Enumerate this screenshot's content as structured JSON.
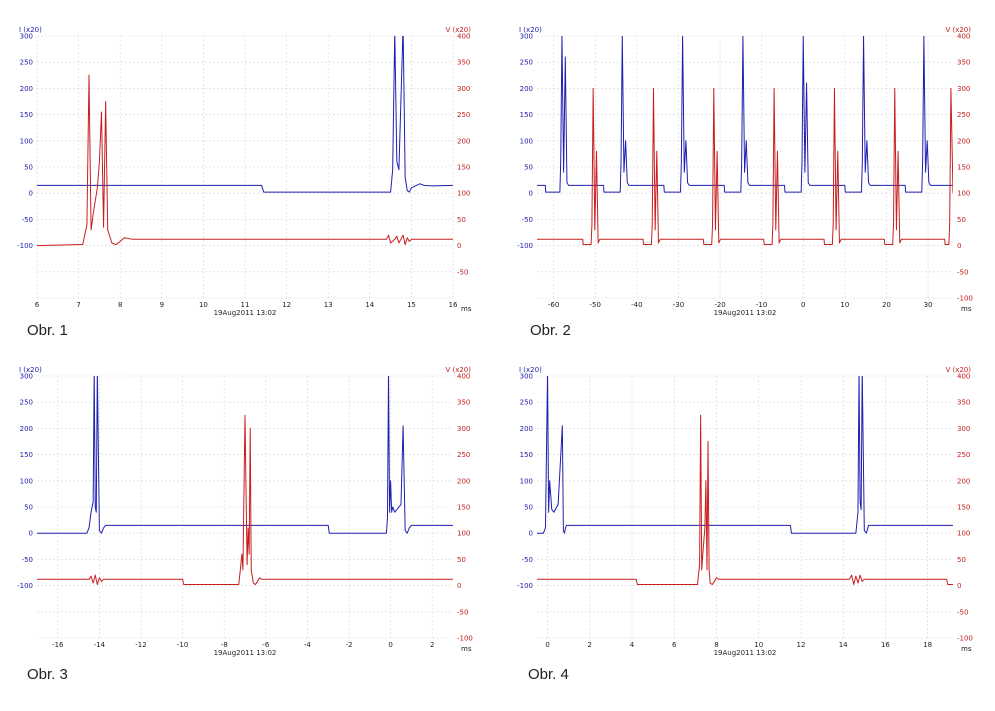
{
  "colors": {
    "current": "#1f1fb0",
    "voltage": "#c81e1e",
    "grid": "#d6d6d6"
  },
  "chart_data": [
    {
      "type": "line",
      "caption": "Obr. 1",
      "left_axis_label": "I (x20)",
      "right_axis_label": "V (x20)",
      "xlabel": "ms",
      "date_label": "19Aug2011  13:02",
      "grid": true,
      "xlim": [
        6,
        16
      ],
      "ylim_left": [
        -200,
        300
      ],
      "ylim_right": [
        -100,
        400
      ],
      "x_ticks": [
        6,
        7,
        8,
        9,
        10,
        11,
        12,
        13,
        14,
        15,
        16
      ],
      "left_ticks": [
        300,
        250,
        200,
        150,
        100,
        50,
        0,
        -50,
        -100
      ],
      "right_ticks": [
        400,
        350,
        300,
        250,
        200,
        150,
        100,
        50,
        0,
        -50
      ],
      "series": [
        {
          "name": "current",
          "axis": "left",
          "color": "#1f1fb0",
          "x": [
            6.0,
            11.4,
            11.45,
            14.5,
            14.55,
            14.6,
            14.65,
            14.7,
            14.8,
            14.85,
            14.9,
            14.95,
            15.0,
            15.2,
            15.3,
            15.5,
            16.0
          ],
          "y": [
            15,
            15,
            2,
            2,
            45,
            310,
            60,
            45,
            320,
            30,
            5,
            2,
            10,
            18,
            15,
            14,
            15
          ]
        },
        {
          "name": "voltage",
          "axis": "right",
          "color": "#c81e1e",
          "x": [
            6.0,
            7.1,
            7.2,
            7.25,
            7.3,
            7.35,
            7.45,
            7.5,
            7.55,
            7.6,
            7.65,
            7.7,
            7.8,
            7.9,
            8.0,
            8.1,
            8.3,
            14.4,
            14.45,
            14.5,
            14.6,
            14.65,
            14.7,
            14.8,
            14.85,
            14.9,
            14.95,
            15.0,
            15.1,
            16.0
          ],
          "y": [
            0,
            2,
            40,
            325,
            30,
            60,
            110,
            160,
            255,
            35,
            275,
            30,
            5,
            2,
            8,
            15,
            12,
            12,
            20,
            5,
            12,
            18,
            5,
            20,
            2,
            15,
            8,
            12,
            12,
            12
          ]
        }
      ]
    },
    {
      "type": "line",
      "caption": "Obr. 2",
      "left_axis_label": "I (x20)",
      "right_axis_label": "V (x20)",
      "xlabel": "ms",
      "date_label": "19Aug2011  13:02",
      "grid": true,
      "xlim": [
        -64,
        36
      ],
      "ylim_left": [
        -200,
        300
      ],
      "ylim_right": [
        -100,
        400
      ],
      "x_ticks": [
        -60,
        -50,
        -40,
        -30,
        -20,
        -10,
        0,
        10,
        20,
        30
      ],
      "left_ticks": [
        300,
        250,
        200,
        150,
        100,
        50,
        0,
        -50,
        -100
      ],
      "right_ticks": [
        400,
        350,
        300,
        250,
        200,
        150,
        100,
        50,
        0,
        -50,
        -100
      ],
      "series": [
        {
          "name": "current",
          "axis": "left",
          "color": "#1f1fb0",
          "x": [
            -64,
            -62,
            -61.9,
            -58.5,
            -58.3,
            -58.0,
            -57.6,
            -57.2,
            -56.8,
            -56.4,
            -48,
            -47.9,
            -44.0,
            -43.8,
            -43.5,
            -43.1,
            -42.7,
            -42.3,
            -41.9,
            -33.5,
            -33.4,
            -29.5,
            -29.3,
            -29.0,
            -28.6,
            -28.2,
            -27.8,
            -27.4,
            -19.0,
            -18.9,
            -15.0,
            -14.8,
            -14.5,
            -14.1,
            -13.7,
            -13.3,
            -12.9,
            -4.5,
            -4.4,
            -0.5,
            -0.3,
            0.0,
            0.4,
            0.8,
            1.2,
            1.6,
            10.0,
            10.1,
            14.0,
            14.2,
            14.5,
            14.9,
            15.3,
            15.7,
            16.1,
            24.5,
            24.6,
            28.5,
            28.7,
            29.0,
            29.4,
            29.8,
            30.2,
            30.6,
            36
          ],
          "y": [
            15,
            15,
            2,
            2,
            60,
            300,
            40,
            260,
            20,
            15,
            15,
            2,
            2,
            60,
            300,
            40,
            100,
            20,
            15,
            15,
            2,
            2,
            60,
            300,
            40,
            100,
            20,
            15,
            15,
            2,
            2,
            60,
            300,
            40,
            100,
            20,
            15,
            15,
            2,
            2,
            60,
            300,
            40,
            210,
            20,
            15,
            15,
            2,
            2,
            60,
            300,
            40,
            100,
            20,
            15,
            15,
            2,
            2,
            60,
            300,
            40,
            100,
            20,
            15,
            15
          ]
        },
        {
          "name": "voltage",
          "axis": "right",
          "color": "#c81e1e",
          "x": [
            -64,
            -53.0,
            -52.9,
            -51.0,
            -50.8,
            -50.5,
            -50.1,
            -49.7,
            -49.3,
            -48.9,
            -38.5,
            -38.4,
            -36.5,
            -36.3,
            -36.0,
            -35.6,
            -35.2,
            -34.8,
            -34.4,
            -24.0,
            -23.9,
            -22.0,
            -21.8,
            -21.5,
            -21.1,
            -20.7,
            -20.3,
            -19.9,
            -9.5,
            -9.4,
            -7.5,
            -7.3,
            -7.0,
            -6.6,
            -6.2,
            -5.8,
            -5.4,
            5.0,
            5.1,
            7.0,
            7.2,
            7.5,
            7.9,
            8.3,
            8.7,
            9.1,
            19.5,
            19.6,
            21.5,
            21.7,
            22.0,
            22.4,
            22.8,
            23.2,
            23.6,
            34.0,
            34.1,
            35.0,
            35.2,
            35.5,
            36
          ],
          "y": [
            12,
            12,
            2,
            2,
            40,
            300,
            30,
            180,
            5,
            12,
            12,
            2,
            2,
            40,
            300,
            30,
            180,
            5,
            12,
            12,
            2,
            2,
            40,
            300,
            30,
            180,
            5,
            12,
            12,
            2,
            2,
            40,
            300,
            30,
            180,
            5,
            12,
            12,
            2,
            2,
            40,
            300,
            30,
            180,
            5,
            12,
            12,
            2,
            2,
            40,
            300,
            30,
            180,
            5,
            12,
            12,
            2,
            2,
            40,
            300,
            100
          ]
        }
      ]
    },
    {
      "type": "line",
      "caption": "Obr. 3",
      "left_axis_label": "I (x20)",
      "right_axis_label": "V (x20)",
      "xlabel": "ms",
      "date_label": "19Aug2011  13:02",
      "grid": true,
      "xlim": [
        -17,
        3
      ],
      "ylim_left": [
        -200,
        300
      ],
      "ylim_right": [
        -100,
        400
      ],
      "x_ticks": [
        -16,
        -14,
        -12,
        -10,
        -8,
        -6,
        -4,
        -2,
        0,
        2
      ],
      "left_ticks": [
        300,
        250,
        200,
        150,
        100,
        50,
        0,
        -50,
        -100
      ],
      "right_ticks": [
        400,
        350,
        300,
        250,
        200,
        150,
        100,
        50,
        0,
        -50,
        -100
      ],
      "series": [
        {
          "name": "current",
          "axis": "left",
          "color": "#1f1fb0",
          "x": [
            -17.0,
            -14.6,
            -14.5,
            -14.4,
            -14.3,
            -14.25,
            -14.2,
            -14.15,
            -14.1,
            -14.0,
            -13.9,
            -13.8,
            -13.7,
            -3.0,
            -2.95,
            -0.2,
            -0.15,
            -0.1,
            -0.05,
            0.0,
            0.05,
            0.1,
            0.2,
            0.5,
            0.6,
            0.7,
            0.8,
            0.9,
            1.0,
            3.0
          ],
          "y": [
            0,
            0,
            10,
            40,
            60,
            310,
            50,
            40,
            310,
            5,
            0,
            10,
            15,
            15,
            0,
            0,
            30,
            310,
            40,
            100,
            40,
            50,
            40,
            55,
            205,
            5,
            0,
            10,
            15,
            15
          ]
        },
        {
          "name": "voltage",
          "axis": "right",
          "color": "#c81e1e",
          "x": [
            -17.0,
            -14.5,
            -14.4,
            -14.3,
            -14.2,
            -14.1,
            -14.0,
            -13.9,
            -13.8,
            -10.0,
            -9.95,
            -7.3,
            -7.2,
            -7.15,
            -7.1,
            -7.0,
            -6.9,
            -6.85,
            -6.8,
            -6.75,
            -6.7,
            -6.6,
            -6.5,
            -6.4,
            -6.3,
            -6.2,
            -6.1,
            3.0
          ],
          "y": [
            12,
            12,
            18,
            5,
            20,
            2,
            15,
            8,
            12,
            12,
            2,
            2,
            40,
            60,
            30,
            325,
            40,
            110,
            60,
            300,
            30,
            5,
            2,
            8,
            15,
            12,
            12,
            12
          ]
        }
      ]
    },
    {
      "type": "line",
      "caption": "Obr. 4",
      "left_axis_label": "I (x20)",
      "right_axis_label": "V (x20)",
      "xlabel": "ms",
      "date_label": "19Aug2011  13:02",
      "grid": true,
      "xlim": [
        -0.5,
        19.2
      ],
      "ylim_left": [
        -200,
        300
      ],
      "ylim_right": [
        -100,
        400
      ],
      "x_ticks": [
        0,
        2,
        4,
        6,
        8,
        10,
        12,
        14,
        16,
        18
      ],
      "left_ticks": [
        300,
        250,
        200,
        150,
        100,
        50,
        0,
        -50,
        -100
      ],
      "right_ticks": [
        400,
        350,
        300,
        250,
        200,
        150,
        100,
        50,
        0,
        -50,
        -100
      ],
      "series": [
        {
          "name": "current",
          "axis": "left",
          "color": "#1f1fb0",
          "x": [
            -0.5,
            -0.2,
            -0.1,
            0.0,
            0.05,
            0.1,
            0.2,
            0.3,
            0.5,
            0.7,
            0.75,
            0.8,
            0.85,
            0.9,
            1.0,
            1.2,
            11.5,
            11.55,
            14.6,
            14.7,
            14.75,
            14.8,
            14.85,
            14.9,
            15.0,
            15.1,
            15.2,
            19.2
          ],
          "y": [
            0,
            0,
            10,
            310,
            40,
            100,
            45,
            40,
            55,
            205,
            5,
            0,
            10,
            15,
            15,
            15,
            15,
            0,
            0,
            40,
            310,
            60,
            45,
            310,
            5,
            0,
            15,
            15
          ]
        },
        {
          "name": "voltage",
          "axis": "right",
          "color": "#c81e1e",
          "x": [
            -0.5,
            4.2,
            4.25,
            7.1,
            7.2,
            7.25,
            7.3,
            7.35,
            7.45,
            7.5,
            7.55,
            7.6,
            7.65,
            7.7,
            7.8,
            7.9,
            8.0,
            8.1,
            14.3,
            14.4,
            14.5,
            14.6,
            14.7,
            14.8,
            14.9,
            15.0,
            18.9,
            18.95,
            19.2
          ],
          "y": [
            12,
            12,
            2,
            2,
            40,
            325,
            30,
            60,
            110,
            200,
            30,
            275,
            30,
            5,
            2,
            8,
            15,
            12,
            12,
            20,
            2,
            18,
            5,
            20,
            8,
            12,
            12,
            2,
            2
          ]
        }
      ]
    }
  ]
}
